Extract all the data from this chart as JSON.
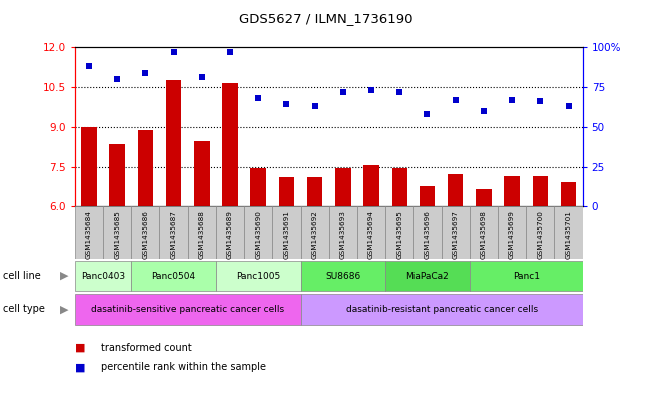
{
  "title": "GDS5627 / ILMN_1736190",
  "samples": [
    "GSM1435684",
    "GSM1435685",
    "GSM1435686",
    "GSM1435687",
    "GSM1435688",
    "GSM1435689",
    "GSM1435690",
    "GSM1435691",
    "GSM1435692",
    "GSM1435693",
    "GSM1435694",
    "GSM1435695",
    "GSM1435696",
    "GSM1435697",
    "GSM1435698",
    "GSM1435699",
    "GSM1435700",
    "GSM1435701"
  ],
  "transformed_count": [
    9.0,
    8.35,
    8.88,
    10.75,
    8.45,
    10.65,
    7.45,
    7.1,
    7.1,
    7.45,
    7.55,
    7.45,
    6.75,
    7.2,
    6.65,
    7.15,
    7.15,
    6.9
  ],
  "percentile_rank": [
    88,
    80,
    84,
    97,
    81,
    97,
    68,
    64,
    63,
    72,
    73,
    72,
    58,
    67,
    60,
    67,
    66,
    63
  ],
  "bar_color": "#cc0000",
  "dot_color": "#0000cc",
  "ylim_left": [
    6,
    12
  ],
  "ylim_right": [
    0,
    100
  ],
  "yticks_left": [
    6,
    7.5,
    9,
    10.5,
    12
  ],
  "yticks_right": [
    0,
    25,
    50,
    75,
    100
  ],
  "cell_lines": [
    {
      "label": "Panc0403",
      "start": 0,
      "end": 1,
      "color": "#ccffcc"
    },
    {
      "label": "Panc0504",
      "start": 2,
      "end": 4,
      "color": "#aaffaa"
    },
    {
      "label": "Panc1005",
      "start": 5,
      "end": 7,
      "color": "#ccffcc"
    },
    {
      "label": "SU8686",
      "start": 8,
      "end": 10,
      "color": "#66ee66"
    },
    {
      "label": "MiaPaCa2",
      "start": 11,
      "end": 13,
      "color": "#55dd55"
    },
    {
      "label": "Panc1",
      "start": 14,
      "end": 17,
      "color": "#66ee66"
    }
  ],
  "cell_types": [
    {
      "label": "dasatinib-sensitive pancreatic cancer cells",
      "start": 0,
      "end": 7,
      "color": "#ee66ee"
    },
    {
      "label": "dasatinib-resistant pancreatic cancer cells",
      "start": 8,
      "end": 17,
      "color": "#cc99ff"
    }
  ],
  "sample_bg_color": "#cccccc",
  "label_text_color": "#444444"
}
